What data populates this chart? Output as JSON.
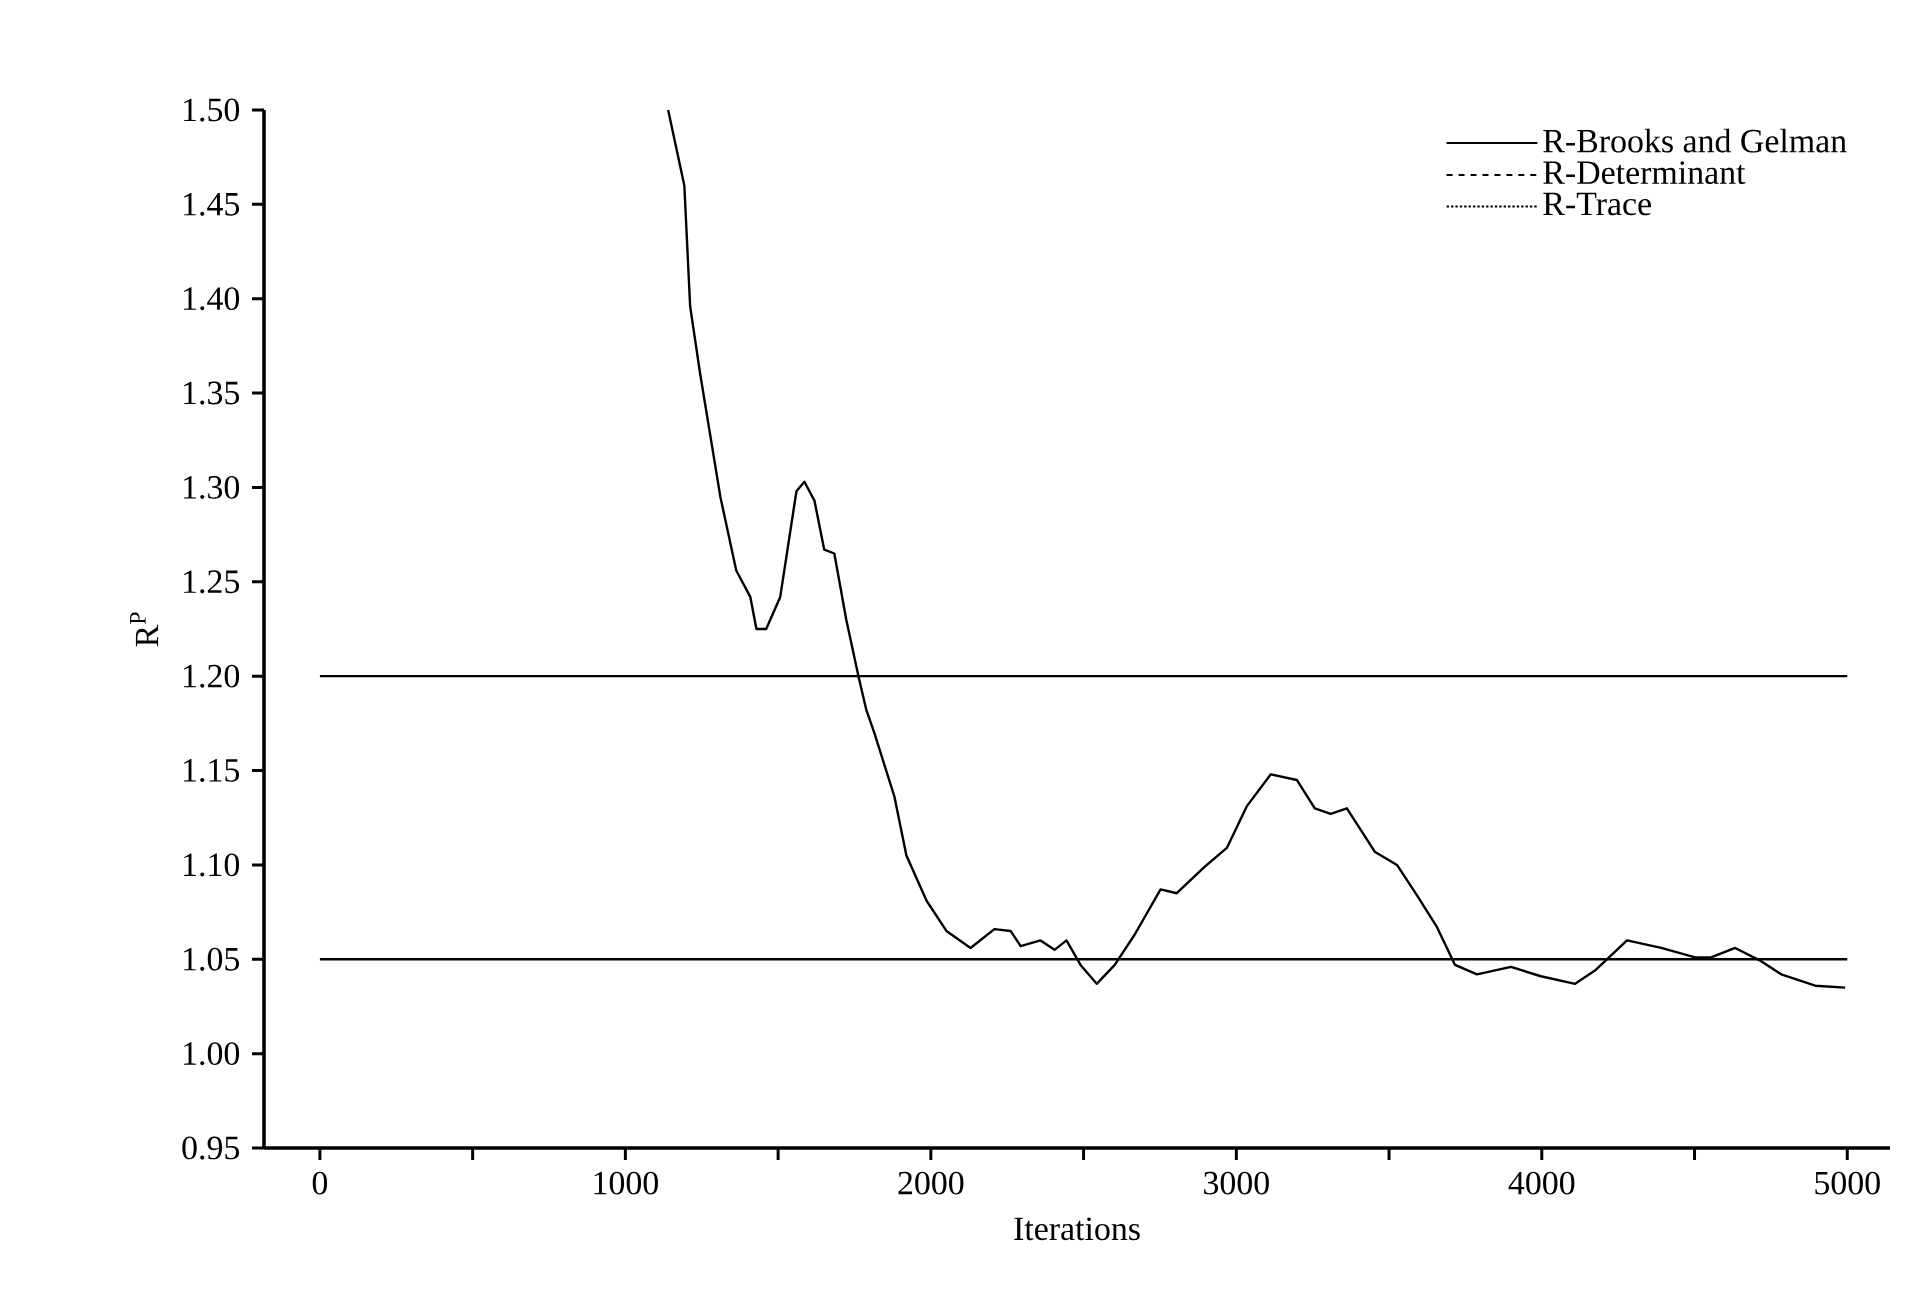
{
  "chart_data": {
    "type": "line",
    "xlabel": "Iterations",
    "ylabel": "R$^{P}$",
    "xlim": [
      -183,
      5140
    ],
    "ylim": [
      0.95,
      1.5
    ],
    "xticks": [
      0,
      {
        "value": 500,
        "label": null
      },
      1000,
      {
        "value": 1500,
        "label": null
      },
      2000,
      {
        "value": 2500,
        "label": null
      },
      3000,
      {
        "value": 3500,
        "label": null
      },
      4000,
      {
        "value": 4500,
        "label": null
      },
      5000
    ],
    "yticks": [
      {
        "value": 0.95,
        "label": "0.95"
      },
      {
        "value": 1.0,
        "label": "1.00"
      },
      {
        "value": 1.05,
        "label": "1.05"
      },
      {
        "value": 1.1,
        "label": "1.10"
      },
      {
        "value": 1.15,
        "label": "1.15"
      },
      {
        "value": 1.2,
        "label": "1.20"
      },
      {
        "value": 1.25,
        "label": "1.25"
      },
      {
        "value": 1.3,
        "label": "1.30"
      },
      {
        "value": 1.35,
        "label": "1.35"
      },
      {
        "value": 1.4,
        "label": "1.40"
      },
      {
        "value": 1.45,
        "label": "1.45"
      },
      {
        "value": 1.5,
        "label": "1.50"
      }
    ],
    "legend": "top right",
    "grid": false,
    "marker": "none",
    "series": [
      {
        "name": "R-Brooks and Gelman",
        "color": "#000000",
        "line_style": "solid",
        "x": [
          1140,
          1193,
          1212,
          1245,
          1311,
          1363,
          1409,
          1429,
          1461,
          1507,
          1560,
          1586,
          1619,
          1651,
          1684,
          1723,
          1763,
          1789,
          1815,
          1881,
          1920,
          1986,
          2051,
          2130,
          2208,
          2261,
          2294,
          2359,
          2405,
          2444,
          2490,
          2543,
          2602,
          2667,
          2752,
          2805,
          2896,
          2969,
          3034,
          3113,
          3198,
          3257,
          3309,
          3362,
          3453,
          3526,
          3591,
          3657,
          3716,
          3788,
          3899,
          3997,
          4109,
          4174,
          4279,
          4391,
          4502,
          4554,
          4633,
          4718,
          4784,
          4895,
          4993
        ],
        "values": [
          1.5,
          1.46,
          1.396,
          1.36,
          1.295,
          1.256,
          1.242,
          1.225,
          1.225,
          1.242,
          1.298,
          1.303,
          1.293,
          1.267,
          1.265,
          1.23,
          1.2,
          1.182,
          1.17,
          1.136,
          1.105,
          1.081,
          1.065,
          1.056,
          1.066,
          1.065,
          1.057,
          1.06,
          1.055,
          1.06,
          1.047,
          1.037,
          1.047,
          1.063,
          1.087,
          1.085,
          1.099,
          1.109,
          1.131,
          1.148,
          1.145,
          1.13,
          1.127,
          1.13,
          1.107,
          1.1,
          1.084,
          1.067,
          1.047,
          1.042,
          1.046,
          1.041,
          1.037,
          1.044,
          1.06,
          1.056,
          1.051,
          1.051,
          1.056,
          1.049,
          1.042,
          1.036,
          1.035
        ]
      },
      {
        "name": "R-Determinant",
        "color": "#000000",
        "line_style": "dashed"
      },
      {
        "name": "R-Trace",
        "color": "#000000",
        "line_style": "dotted"
      },
      {
        "color": "#000000",
        "line_style": "solid",
        "x": [
          0,
          5000
        ],
        "values": [
          1.2,
          1.2
        ]
      },
      {
        "color": "#000000",
        "line_style": "solid",
        "x": [
          0,
          5000
        ],
        "values": [
          1.05,
          1.05
        ]
      }
    ]
  }
}
